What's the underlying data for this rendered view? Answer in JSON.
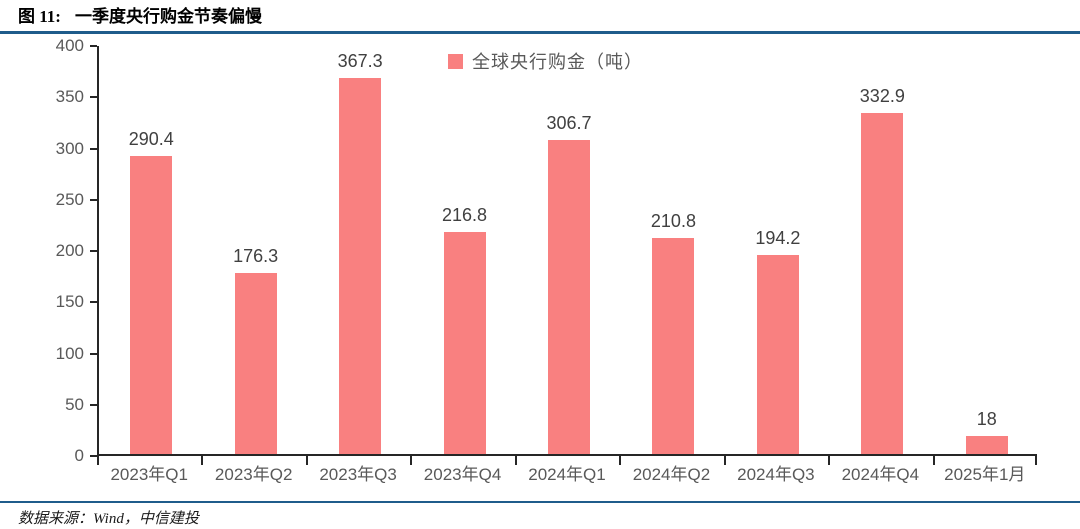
{
  "header": {
    "figure_label": "图 11:",
    "title": "一季度央行购金节奏偏慢"
  },
  "footer": {
    "source": "数据来源：Wind，中信建投"
  },
  "colors": {
    "bar": "#f98080",
    "rule_blue": "#1f5c8b",
    "axis_line": "#262626",
    "tick_label": "#595959",
    "data_label": "#404040"
  },
  "chart_data": {
    "type": "bar",
    "title": "",
    "xlabel": "",
    "ylabel": "",
    "legend": [
      "全球央行购金（吨）"
    ],
    "legend_position": "top-center",
    "grid": false,
    "categories": [
      "2023年Q1",
      "2023年Q2",
      "2023年Q3",
      "2023年Q4",
      "2024年Q1",
      "2024年Q2",
      "2024年Q3",
      "2024年Q4",
      "2025年1月"
    ],
    "values": [
      290.4,
      176.3,
      367.3,
      216.8,
      306.7,
      210.8,
      194.2,
      332.9,
      18
    ],
    "value_labels": [
      "290.4",
      "176.3",
      "367.3",
      "216.8",
      "306.7",
      "210.8",
      "194.2",
      "332.9",
      "18"
    ],
    "ylim": [
      0,
      400
    ],
    "yticks": [
      0,
      50,
      100,
      150,
      200,
      250,
      300,
      350,
      400
    ]
  }
}
